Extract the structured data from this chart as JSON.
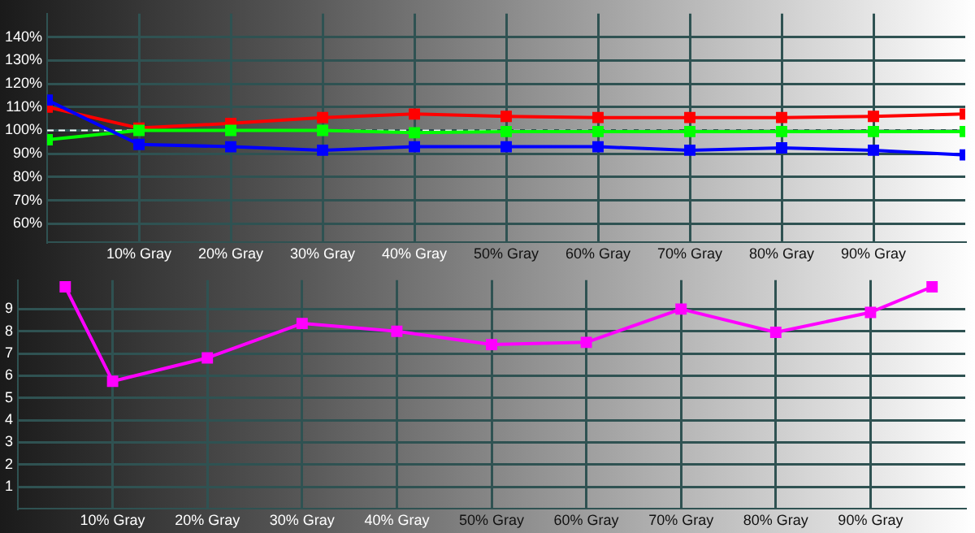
{
  "chart_data": [
    {
      "type": "line",
      "marker": "square",
      "grid": true,
      "xlim": [
        0,
        100
      ],
      "ylim": [
        52,
        150
      ],
      "xticks": [
        {
          "value": 10,
          "label": "10% Gray"
        },
        {
          "value": 20,
          "label": "20% Gray"
        },
        {
          "value": 30,
          "label": "30% Gray"
        },
        {
          "value": 40,
          "label": "40% Gray"
        },
        {
          "value": 50,
          "label": "50% Gray"
        },
        {
          "value": 60,
          "label": "60% Gray"
        },
        {
          "value": 70,
          "label": "70% Gray"
        },
        {
          "value": 80,
          "label": "80% Gray"
        },
        {
          "value": 90,
          "label": "90% Gray"
        }
      ],
      "yticks": [
        {
          "value": 60,
          "label": "60%"
        },
        {
          "value": 70,
          "label": "70%"
        },
        {
          "value": 80,
          "label": "80%"
        },
        {
          "value": 90,
          "label": "90%"
        },
        {
          "value": 100,
          "label": "100%"
        },
        {
          "value": 110,
          "label": "110%"
        },
        {
          "value": 120,
          "label": "120%"
        },
        {
          "value": 130,
          "label": "130%"
        },
        {
          "value": 140,
          "label": "140%"
        }
      ],
      "x": [
        0,
        10,
        20,
        30,
        40,
        50,
        60,
        70,
        80,
        90,
        100
      ],
      "series": [
        {
          "color": "#ff0000",
          "values": [
            110,
            101,
            103,
            105.5,
            107,
            106,
            105.5,
            105.5,
            105.5,
            106,
            107
          ]
        },
        {
          "color": "#00ff00",
          "values": [
            96,
            100,
            100,
            100,
            99,
            99.5,
            99.5,
            99.5,
            99.5,
            99.5,
            99.5
          ]
        },
        {
          "color": "#0000ff",
          "values": [
            113,
            94,
            93,
            91.5,
            93,
            93,
            93,
            91.5,
            92.5,
            91.5,
            89.5
          ]
        }
      ],
      "ref_lines": [
        {
          "axis": "y",
          "value": 100,
          "color": "#ffffff",
          "line_style": "dashed"
        }
      ]
    },
    {
      "type": "line",
      "marker": "square",
      "grid": true,
      "xlim": [
        0,
        100
      ],
      "ylim": [
        0,
        10.3
      ],
      "xticks": [
        {
          "value": 10,
          "label": "10% Gray"
        },
        {
          "value": 20,
          "label": "20% Gray"
        },
        {
          "value": 30,
          "label": "30% Gray"
        },
        {
          "value": 40,
          "label": "40% Gray"
        },
        {
          "value": 50,
          "label": "50% Gray"
        },
        {
          "value": 60,
          "label": "60% Gray"
        },
        {
          "value": 70,
          "label": "70% Gray"
        },
        {
          "value": 80,
          "label": "80% Gray"
        },
        {
          "value": 90,
          "label": "90% Gray"
        }
      ],
      "yticks": [
        1,
        2,
        3,
        4,
        5,
        6,
        7,
        8,
        9
      ],
      "x": [
        5,
        10,
        20,
        30,
        40,
        50,
        60,
        70,
        80,
        90,
        96.5
      ],
      "series": [
        {
          "color": "#ff00ff",
          "values": [
            10,
            5.75,
            6.8,
            8.35,
            8,
            7.4,
            7.5,
            9,
            7.95,
            8.85,
            10
          ]
        }
      ]
    }
  ]
}
